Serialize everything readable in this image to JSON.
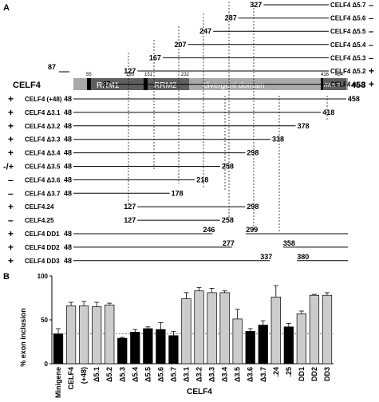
{
  "panels": {
    "a": "A",
    "b": "B"
  },
  "protein": {
    "name": "CELF4",
    "end": "458",
    "start_pos": "87",
    "domains": [
      {
        "label": "RRM1",
        "start": "55",
        "end": "195"
      },
      {
        "label": "RRM2",
        "start": "151",
        "end": "232"
      },
      {
        "label": "divergent domain"
      },
      {
        "label": "RRM3",
        "start": "416",
        "end": "454"
      }
    ]
  },
  "n_constructs": [
    {
      "label": "CELF4 Δ5.7",
      "start": "327",
      "sign": "–"
    },
    {
      "label": "CELF4 Δ5.6",
      "start": "287",
      "sign": "–"
    },
    {
      "label": "CELF4 Δ5.5",
      "start": "247",
      "sign": "–"
    },
    {
      "label": "CELF4 Δ5.4",
      "start": "207",
      "sign": "–"
    },
    {
      "label": "CELF4 Δ5.3",
      "start": "167",
      "sign": "–"
    },
    {
      "label": "CELF4 Δ5.2",
      "start": "127",
      "sign": "+"
    },
    {
      "label": "CELF4 Δ5.1",
      "start": "87",
      "sign": "+"
    }
  ],
  "c_constructs": [
    {
      "label": "CELF4 (+48)",
      "sign": "+",
      "start": "48",
      "end": "458"
    },
    {
      "label": "CELF4 Δ3.1",
      "sign": "+",
      "start": "48",
      "end": "418"
    },
    {
      "label": "CELF4 Δ3.2",
      "sign": "+",
      "start": "48",
      "end": "378"
    },
    {
      "label": "CELF4 Δ3.3",
      "sign": "+",
      "start": "48",
      "end": "338"
    },
    {
      "label": "CELF4 Δ3.4",
      "sign": "+",
      "start": "48",
      "end": "298"
    },
    {
      "label": "CELF4 Δ3.5",
      "sign": "-/+",
      "start": "48",
      "end": "258"
    },
    {
      "label": "CELF4 Δ3.6",
      "sign": "–",
      "start": "48",
      "end": "218"
    },
    {
      "label": "CELF4 Δ3.7",
      "sign": "–",
      "start": "48",
      "end": "178"
    },
    {
      "label": "CELF4.24",
      "sign": "+",
      "start": "127",
      "end": "298"
    },
    {
      "label": "CELF4.25",
      "sign": "–",
      "start": "127",
      "end": "258"
    },
    {
      "label": "CELF4 DD1",
      "sign": "+",
      "start": "48",
      "gap_start": "246",
      "gap_end": "299"
    },
    {
      "label": "CELF4 DD2",
      "sign": "+",
      "start": "48",
      "gap_start": "277",
      "gap_end": "358"
    },
    {
      "label": "CELF4 DD3",
      "sign": "+",
      "start": "48",
      "gap_start": "337",
      "gap_end": "380"
    }
  ],
  "chart_data": {
    "type": "bar",
    "ylabel": "% exon inclusion",
    "xlabel": "CELF4",
    "ylim": [
      0,
      100
    ],
    "yticks": [
      "0",
      "50",
      "100"
    ],
    "baseline": 34,
    "categories": [
      "Minigene",
      "CELF4",
      "(+48)",
      "Δ5.1",
      "Δ5.2",
      "Δ5.3",
      "Δ5.4",
      "Δ5.5",
      "Δ5.6",
      "Δ5.7",
      "Δ3.1",
      "Δ3.2",
      "Δ3.3",
      "Δ3.4",
      "Δ3.5",
      "Δ3.6",
      "Δ3.7",
      ".24",
      ".25",
      "DD1",
      "DD2",
      "DD3"
    ],
    "values": [
      34,
      66,
      66,
      65,
      67,
      29,
      36,
      40,
      39,
      32,
      74,
      83,
      81,
      81,
      51,
      37,
      44,
      76,
      42,
      57,
      78,
      78
    ],
    "errors": [
      6,
      4,
      5,
      5,
      2,
      1,
      3,
      2,
      8,
      5,
      7,
      4,
      5,
      2,
      11,
      3,
      5,
      13,
      4,
      3,
      1,
      3
    ],
    "fills": [
      "#000000",
      "#cccccc",
      "#cccccc",
      "#cccccc",
      "#cccccc",
      "#000000",
      "#000000",
      "#000000",
      "#000000",
      "#000000",
      "#cccccc",
      "#cccccc",
      "#cccccc",
      "#cccccc",
      "#cccccc",
      "#000000",
      "#000000",
      "#cccccc",
      "#000000",
      "#cccccc",
      "#cccccc",
      "#cccccc"
    ]
  }
}
